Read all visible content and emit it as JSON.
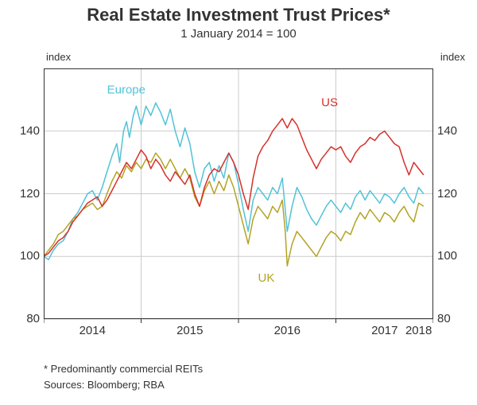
{
  "chart": {
    "type": "line",
    "title": "Real Estate Investment Trust Prices*",
    "subtitle": "1 January 2014 = 100",
    "title_fontsize": 22,
    "subtitle_fontsize": 15,
    "background_color": "#ffffff",
    "plot_box_color": "#333333",
    "grid_color": "#cccccc",
    "x": {
      "label_left": "index",
      "label_right": "index",
      "start_year": 2014,
      "end_year": 2018,
      "tick_years": [
        2014,
        2015,
        2016,
        2017,
        2018
      ]
    },
    "y": {
      "min": 80,
      "max": 160,
      "ticks": [
        80,
        100,
        120,
        140
      ],
      "top_label": "index"
    },
    "series_labels": {
      "europe": {
        "text": "Europe",
        "color": "#52c3d6",
        "x_year": 2014.65,
        "y_val": 152
      },
      "us": {
        "text": "US",
        "color": "#d6302a",
        "x_year": 2016.85,
        "y_val": 148
      },
      "uk": {
        "text": "UK",
        "color": "#b3a326",
        "x_year": 2016.2,
        "y_val": 92
      }
    },
    "series": {
      "europe": {
        "color": "#52c3d6",
        "width": 1.5,
        "points": [
          [
            2014.0,
            100
          ],
          [
            2014.05,
            99
          ],
          [
            2014.1,
            102
          ],
          [
            2014.15,
            104
          ],
          [
            2014.2,
            105
          ],
          [
            2014.25,
            108
          ],
          [
            2014.3,
            112
          ],
          [
            2014.35,
            114
          ],
          [
            2014.4,
            117
          ],
          [
            2014.45,
            120
          ],
          [
            2014.5,
            121
          ],
          [
            2014.55,
            118
          ],
          [
            2014.6,
            122
          ],
          [
            2014.65,
            127
          ],
          [
            2014.7,
            132
          ],
          [
            2014.75,
            136
          ],
          [
            2014.78,
            130
          ],
          [
            2014.82,
            140
          ],
          [
            2014.85,
            143
          ],
          [
            2014.88,
            138
          ],
          [
            2014.92,
            145
          ],
          [
            2014.95,
            148
          ],
          [
            2015.0,
            142
          ],
          [
            2015.05,
            148
          ],
          [
            2015.1,
            145
          ],
          [
            2015.15,
            149
          ],
          [
            2015.2,
            146
          ],
          [
            2015.25,
            142
          ],
          [
            2015.3,
            147
          ],
          [
            2015.35,
            140
          ],
          [
            2015.4,
            135
          ],
          [
            2015.45,
            141
          ],
          [
            2015.5,
            136
          ],
          [
            2015.55,
            127
          ],
          [
            2015.6,
            122
          ],
          [
            2015.65,
            128
          ],
          [
            2015.7,
            130
          ],
          [
            2015.75,
            124
          ],
          [
            2015.8,
            129
          ],
          [
            2015.85,
            125
          ],
          [
            2015.9,
            133
          ],
          [
            2015.95,
            130
          ],
          [
            2016.0,
            123
          ],
          [
            2016.05,
            115
          ],
          [
            2016.1,
            108
          ],
          [
            2016.15,
            118
          ],
          [
            2016.2,
            122
          ],
          [
            2016.25,
            120
          ],
          [
            2016.3,
            118
          ],
          [
            2016.35,
            122
          ],
          [
            2016.4,
            120
          ],
          [
            2016.45,
            125
          ],
          [
            2016.48,
            115
          ],
          [
            2016.5,
            108
          ],
          [
            2016.55,
            116
          ],
          [
            2016.6,
            122
          ],
          [
            2016.65,
            119
          ],
          [
            2016.7,
            115
          ],
          [
            2016.75,
            112
          ],
          [
            2016.8,
            110
          ],
          [
            2016.85,
            113
          ],
          [
            2016.9,
            116
          ],
          [
            2016.95,
            118
          ],
          [
            2017.0,
            116
          ],
          [
            2017.05,
            114
          ],
          [
            2017.1,
            117
          ],
          [
            2017.15,
            115
          ],
          [
            2017.2,
            119
          ],
          [
            2017.25,
            121
          ],
          [
            2017.3,
            118
          ],
          [
            2017.35,
            121
          ],
          [
            2017.4,
            119
          ],
          [
            2017.45,
            117
          ],
          [
            2017.5,
            120
          ],
          [
            2017.55,
            119
          ],
          [
            2017.6,
            117
          ],
          [
            2017.65,
            120
          ],
          [
            2017.7,
            122
          ],
          [
            2017.75,
            119
          ],
          [
            2017.8,
            117
          ],
          [
            2017.85,
            122
          ],
          [
            2017.9,
            120
          ]
        ]
      },
      "us": {
        "color": "#d6302a",
        "width": 1.5,
        "points": [
          [
            2014.0,
            100
          ],
          [
            2014.05,
            101
          ],
          [
            2014.1,
            103
          ],
          [
            2014.15,
            105
          ],
          [
            2014.2,
            106
          ],
          [
            2014.25,
            108
          ],
          [
            2014.3,
            111
          ],
          [
            2014.35,
            113
          ],
          [
            2014.4,
            115
          ],
          [
            2014.45,
            117
          ],
          [
            2014.5,
            118
          ],
          [
            2014.55,
            119
          ],
          [
            2014.6,
            116
          ],
          [
            2014.65,
            118
          ],
          [
            2014.7,
            121
          ],
          [
            2014.75,
            124
          ],
          [
            2014.8,
            127
          ],
          [
            2014.85,
            130
          ],
          [
            2014.9,
            128
          ],
          [
            2014.95,
            131
          ],
          [
            2015.0,
            134
          ],
          [
            2015.05,
            132
          ],
          [
            2015.1,
            128
          ],
          [
            2015.15,
            131
          ],
          [
            2015.2,
            129
          ],
          [
            2015.25,
            126
          ],
          [
            2015.3,
            124
          ],
          [
            2015.35,
            127
          ],
          [
            2015.4,
            125
          ],
          [
            2015.45,
            123
          ],
          [
            2015.5,
            126
          ],
          [
            2015.55,
            120
          ],
          [
            2015.6,
            116
          ],
          [
            2015.65,
            122
          ],
          [
            2015.7,
            126
          ],
          [
            2015.75,
            128
          ],
          [
            2015.8,
            127
          ],
          [
            2015.85,
            130
          ],
          [
            2015.9,
            133
          ],
          [
            2015.95,
            130
          ],
          [
            2016.0,
            126
          ],
          [
            2016.05,
            120
          ],
          [
            2016.1,
            115
          ],
          [
            2016.15,
            125
          ],
          [
            2016.2,
            132
          ],
          [
            2016.25,
            135
          ],
          [
            2016.3,
            137
          ],
          [
            2016.35,
            140
          ],
          [
            2016.4,
            142
          ],
          [
            2016.45,
            144
          ],
          [
            2016.5,
            141
          ],
          [
            2016.55,
            144
          ],
          [
            2016.6,
            142
          ],
          [
            2016.65,
            138
          ],
          [
            2016.7,
            134
          ],
          [
            2016.75,
            131
          ],
          [
            2016.8,
            128
          ],
          [
            2016.85,
            131
          ],
          [
            2016.9,
            133
          ],
          [
            2016.95,
            135
          ],
          [
            2017.0,
            134
          ],
          [
            2017.05,
            135
          ],
          [
            2017.1,
            132
          ],
          [
            2017.15,
            130
          ],
          [
            2017.2,
            133
          ],
          [
            2017.25,
            135
          ],
          [
            2017.3,
            136
          ],
          [
            2017.35,
            138
          ],
          [
            2017.4,
            137
          ],
          [
            2017.45,
            139
          ],
          [
            2017.5,
            140
          ],
          [
            2017.55,
            138
          ],
          [
            2017.6,
            136
          ],
          [
            2017.65,
            135
          ],
          [
            2017.7,
            130
          ],
          [
            2017.75,
            126
          ],
          [
            2017.8,
            130
          ],
          [
            2017.85,
            128
          ],
          [
            2017.9,
            126
          ]
        ]
      },
      "uk": {
        "color": "#b3a326",
        "width": 1.5,
        "points": [
          [
            2014.0,
            100
          ],
          [
            2014.05,
            102
          ],
          [
            2014.1,
            104
          ],
          [
            2014.15,
            107
          ],
          [
            2014.2,
            108
          ],
          [
            2014.25,
            110
          ],
          [
            2014.3,
            112
          ],
          [
            2014.35,
            113
          ],
          [
            2014.4,
            115
          ],
          [
            2014.45,
            116
          ],
          [
            2014.5,
            117
          ],
          [
            2014.55,
            115
          ],
          [
            2014.6,
            116
          ],
          [
            2014.65,
            120
          ],
          [
            2014.7,
            124
          ],
          [
            2014.75,
            127
          ],
          [
            2014.8,
            125
          ],
          [
            2014.85,
            129
          ],
          [
            2014.9,
            127
          ],
          [
            2014.95,
            130
          ],
          [
            2015.0,
            128
          ],
          [
            2015.05,
            131
          ],
          [
            2015.1,
            130
          ],
          [
            2015.15,
            133
          ],
          [
            2015.2,
            131
          ],
          [
            2015.25,
            128
          ],
          [
            2015.3,
            131
          ],
          [
            2015.35,
            128
          ],
          [
            2015.4,
            125
          ],
          [
            2015.45,
            128
          ],
          [
            2015.5,
            125
          ],
          [
            2015.55,
            119
          ],
          [
            2015.6,
            116
          ],
          [
            2015.65,
            121
          ],
          [
            2015.7,
            124
          ],
          [
            2015.75,
            120
          ],
          [
            2015.8,
            124
          ],
          [
            2015.85,
            121
          ],
          [
            2015.9,
            126
          ],
          [
            2015.95,
            122
          ],
          [
            2016.0,
            116
          ],
          [
            2016.05,
            110
          ],
          [
            2016.1,
            104
          ],
          [
            2016.15,
            112
          ],
          [
            2016.2,
            116
          ],
          [
            2016.25,
            114
          ],
          [
            2016.3,
            112
          ],
          [
            2016.35,
            116
          ],
          [
            2016.4,
            114
          ],
          [
            2016.45,
            118
          ],
          [
            2016.48,
            108
          ],
          [
            2016.5,
            97
          ],
          [
            2016.55,
            104
          ],
          [
            2016.6,
            108
          ],
          [
            2016.65,
            106
          ],
          [
            2016.7,
            104
          ],
          [
            2016.75,
            102
          ],
          [
            2016.8,
            100
          ],
          [
            2016.85,
            103
          ],
          [
            2016.9,
            106
          ],
          [
            2016.95,
            108
          ],
          [
            2017.0,
            107
          ],
          [
            2017.05,
            105
          ],
          [
            2017.1,
            108
          ],
          [
            2017.15,
            107
          ],
          [
            2017.2,
            111
          ],
          [
            2017.25,
            114
          ],
          [
            2017.3,
            112
          ],
          [
            2017.35,
            115
          ],
          [
            2017.4,
            113
          ],
          [
            2017.45,
            111
          ],
          [
            2017.5,
            114
          ],
          [
            2017.55,
            113
          ],
          [
            2017.6,
            111
          ],
          [
            2017.65,
            114
          ],
          [
            2017.7,
            116
          ],
          [
            2017.75,
            113
          ],
          [
            2017.8,
            111
          ],
          [
            2017.85,
            117
          ],
          [
            2017.9,
            116
          ]
        ]
      }
    },
    "footnote": "*    Predominantly commercial REITs",
    "sources": "Sources: Bloomberg; RBA"
  }
}
